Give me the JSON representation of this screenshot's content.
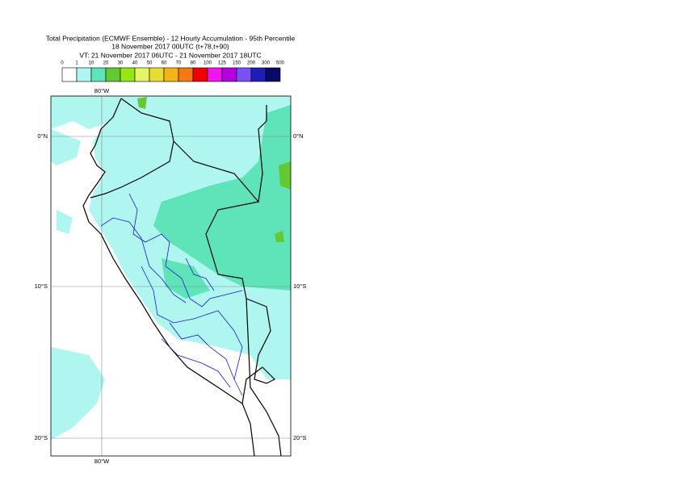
{
  "header": {
    "title_lines": [
      "Total Precipitation (ECMWF Ensemble) - 12 Hourly Accumulation - 95th Percentile",
      "18 November 2017 00UTC (t+78,t+90)",
      "VT: 21 November 2017 06UTC - 21 November 2017 18UTC"
    ]
  },
  "legend": {
    "labels": [
      "0",
      "1",
      "10",
      "20",
      "30",
      "40",
      "50",
      "60",
      "70",
      "80",
      "100",
      "125",
      "150",
      "200",
      "300",
      "500"
    ],
    "colors": [
      "#ffffff",
      "#aff5f0",
      "#5fe3b8",
      "#64c832",
      "#96e614",
      "#e6f564",
      "#e6dc32",
      "#f5b414",
      "#f57814",
      "#f00000",
      "#f014f0",
      "#b400dc",
      "#7850f5",
      "#1e1eb4",
      "#0a0a64"
    ]
  },
  "map": {
    "lon_labels": [
      "80°W",
      "80°W"
    ],
    "lat_labels_left": [
      "0°N",
      "10°S",
      "20°S"
    ],
    "lat_labels_right": [
      "0°N",
      "10°S",
      "20°S"
    ]
  }
}
